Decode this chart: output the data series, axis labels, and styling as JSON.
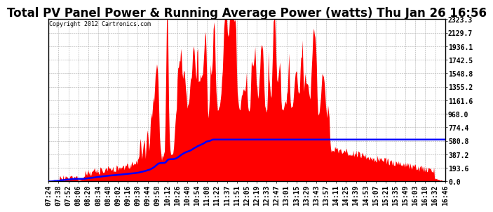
{
  "title": "Total PV Panel Power & Running Average Power (watts) Thu Jan 26 16:56",
  "copyright": "Copyright 2012 Cartronics.com",
  "bg_color": "#ffffff",
  "plot_bg_color": "#ffffff",
  "grid_color": "#aaaaaa",
  "bar_color": "#ff0000",
  "avg_color": "#0000ff",
  "yticks": [
    0.0,
    193.6,
    387.2,
    580.8,
    774.4,
    968.0,
    1161.6,
    1355.2,
    1548.8,
    1742.5,
    1936.1,
    2129.7,
    2323.3
  ],
  "ymax": 2323.3,
  "title_fontsize": 12,
  "tick_fontsize": 7,
  "xtick_labels": [
    "07:24",
    "07:38",
    "07:52",
    "08:06",
    "08:20",
    "08:34",
    "08:48",
    "09:02",
    "09:16",
    "09:30",
    "09:44",
    "09:58",
    "10:12",
    "10:26",
    "10:40",
    "10:54",
    "11:08",
    "11:22",
    "11:37",
    "11:51",
    "12:05",
    "12:19",
    "12:33",
    "12:47",
    "13:01",
    "13:15",
    "13:29",
    "13:43",
    "13:57",
    "14:11",
    "14:25",
    "14:39",
    "14:53",
    "15:07",
    "15:21",
    "15:35",
    "15:49",
    "16:03",
    "16:18",
    "16:32",
    "16:46"
  ]
}
